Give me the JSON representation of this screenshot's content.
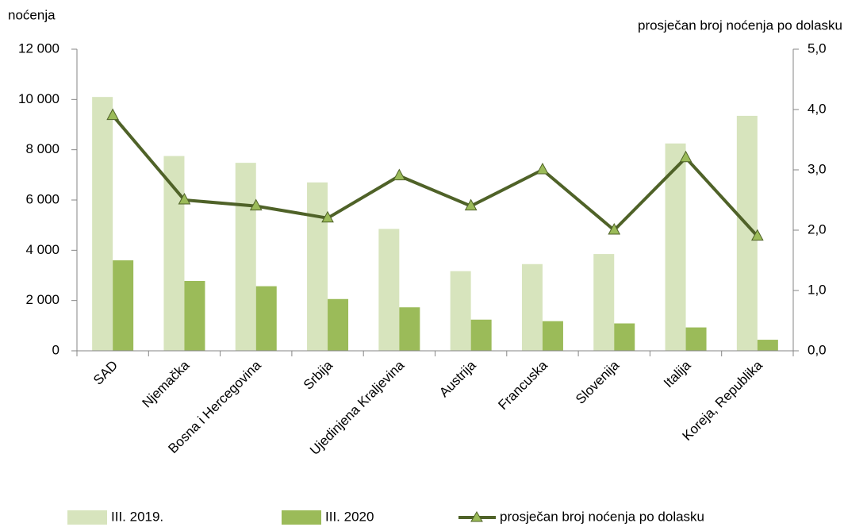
{
  "chart_data": {
    "type": "bar_line",
    "ylabel": "noćenja",
    "y2label": "prosječan broj noćenja po dolasku",
    "categories": [
      "SAD",
      "Njemačka",
      "Bosna i Hercegovina",
      "Srbija",
      "Ujedinjena Kraljevina",
      "Austrija",
      "Francuska",
      "Slovenija",
      "Italija",
      "Koreja, Republika"
    ],
    "series": [
      {
        "name": "III. 2019.",
        "type": "bar",
        "color": "#d7e4bd",
        "values": [
          10100,
          7750,
          7480,
          6700,
          4850,
          3170,
          3450,
          3850,
          8250,
          9350
        ]
      },
      {
        "name": "III. 2020",
        "type": "bar",
        "color": "#9bbb59",
        "values": [
          3600,
          2780,
          2570,
          2060,
          1730,
          1240,
          1180,
          1090,
          930,
          440
        ]
      },
      {
        "name": "prosječan broj noćenja po dolasku",
        "type": "line",
        "axis": "y2",
        "color": "#4f6228",
        "marker_color": "#9bbb59",
        "values": [
          3.9,
          2.5,
          2.4,
          2.2,
          2.9,
          2.4,
          3.0,
          2.0,
          3.2,
          1.9
        ]
      }
    ],
    "ylim": [
      0,
      12000
    ],
    "yticks": [
      0,
      {
        "value": 2000,
        "label": "2 000"
      },
      {
        "value": 4000,
        "label": "4 000"
      },
      {
        "value": 6000,
        "label": "6 000"
      },
      {
        "value": 8000,
        "label": "8 000"
      },
      {
        "value": 10000,
        "label": "10 000"
      },
      {
        "value": 12000,
        "label": "12 000"
      }
    ],
    "y2lim": [
      0,
      5
    ],
    "y2ticks": [
      {
        "value": 0,
        "label": "0,0"
      },
      {
        "value": 1,
        "label": "1,0"
      },
      {
        "value": 2,
        "label": "2,0"
      },
      {
        "value": 3,
        "label": "3,0"
      },
      {
        "value": 4,
        "label": "4,0"
      },
      {
        "value": 5,
        "label": "5,0"
      }
    ],
    "grid": false,
    "legend": "bottom"
  }
}
